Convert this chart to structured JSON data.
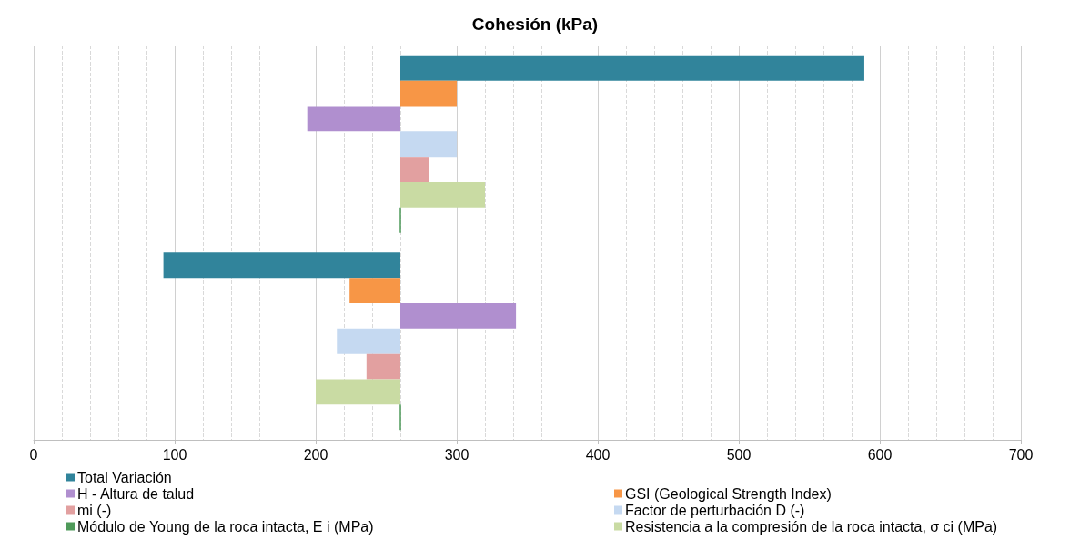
{
  "chart_data": {
    "type": "bar",
    "orientation": "horizontal",
    "title": "Cohesión (kPa)",
    "categories": [
      null,
      null
    ],
    "series": [
      {
        "name": "Total Variación",
        "color": "#31849b",
        "values": [
          329,
          -168
        ],
        "base": [
          260,
          260
        ]
      },
      {
        "name": "GSI (Geological Strength Index)",
        "color": "#f79646",
        "values": [
          40,
          -36
        ],
        "base": [
          260,
          260
        ]
      },
      {
        "name": "H - Altura de talud",
        "color": "#b08fcf",
        "values": [
          -66,
          82
        ],
        "base": [
          260,
          260
        ]
      },
      {
        "name": "Factor de perturbación D (-)",
        "color": "#c5d9f1",
        "values": [
          40,
          -45
        ],
        "base": [
          260,
          260
        ]
      },
      {
        "name": "mi (-)",
        "color": "#e2a0a0",
        "values": [
          20,
          -24
        ],
        "base": [
          260,
          260
        ]
      },
      {
        "name": "Resistencia a la compresión de la roca intacta, σ ci (MPa)",
        "color": "#c9dba3",
        "values": [
          60,
          -60
        ],
        "base": [
          260,
          260
        ]
      },
      {
        "name": "Módulo de Young de la roca intacta, E i (MPa)",
        "color": "#4f9a5a",
        "values": [
          0,
          0
        ],
        "base": [
          260,
          260
        ]
      }
    ],
    "xlim": [
      0,
      700
    ],
    "xticks": [
      0,
      100,
      200,
      300,
      400,
      500,
      600,
      700
    ],
    "grid": "x",
    "legend": "bottom"
  }
}
